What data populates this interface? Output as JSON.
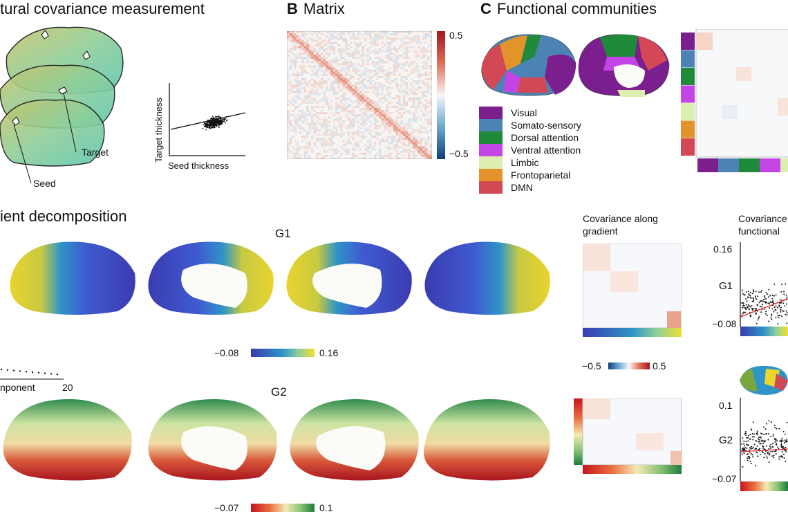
{
  "panelA": {
    "title": "tural covariance measurement",
    "target_label": "Target",
    "seed_label": "Seed",
    "xlabel": "Seed thickness",
    "ylabel": "Target thickness"
  },
  "panelB": {
    "letter": "B",
    "title": "Matrix",
    "cbar_max": "0.5",
    "cbar_min": "−0.5"
  },
  "panelC": {
    "letter": "C",
    "title": "Functional communities",
    "communities": [
      {
        "name": "Visual",
        "color": "#7B1F8E"
      },
      {
        "name": "Somato-sensory",
        "color": "#4C83B4"
      },
      {
        "name": "Dorsal attention",
        "color": "#1F8A3A"
      },
      {
        "name": "Ventral attention",
        "color": "#C445E6"
      },
      {
        "name": "Limbic",
        "color": "#DCEFAE"
      },
      {
        "name": "Frontoparietal",
        "color": "#E2942B"
      },
      {
        "name": "DMN",
        "color": "#D24855"
      }
    ]
  },
  "panelD": {
    "title": "ient decomposition",
    "component_label": "nponent",
    "component_max": "20",
    "g1_label": "G1",
    "g1_min": "−0.08",
    "g1_max": "0.16",
    "g2_label": "G2",
    "g2_min": "−0.07",
    "g2_max": "0.1"
  },
  "panelE": {
    "title_line1": "Covariance along",
    "title_line2": "gradient",
    "cbar_min": "−0.5",
    "cbar_max": "0.5"
  },
  "panelF": {
    "title_line1": "Covariance",
    "title_line2": "functional",
    "g1_label": "G1",
    "g1_top": "0.16",
    "g1_bottom": "−0.08",
    "g2_label": "G2",
    "g2_top": "0.1",
    "g2_bottom": "−0.07"
  }
}
